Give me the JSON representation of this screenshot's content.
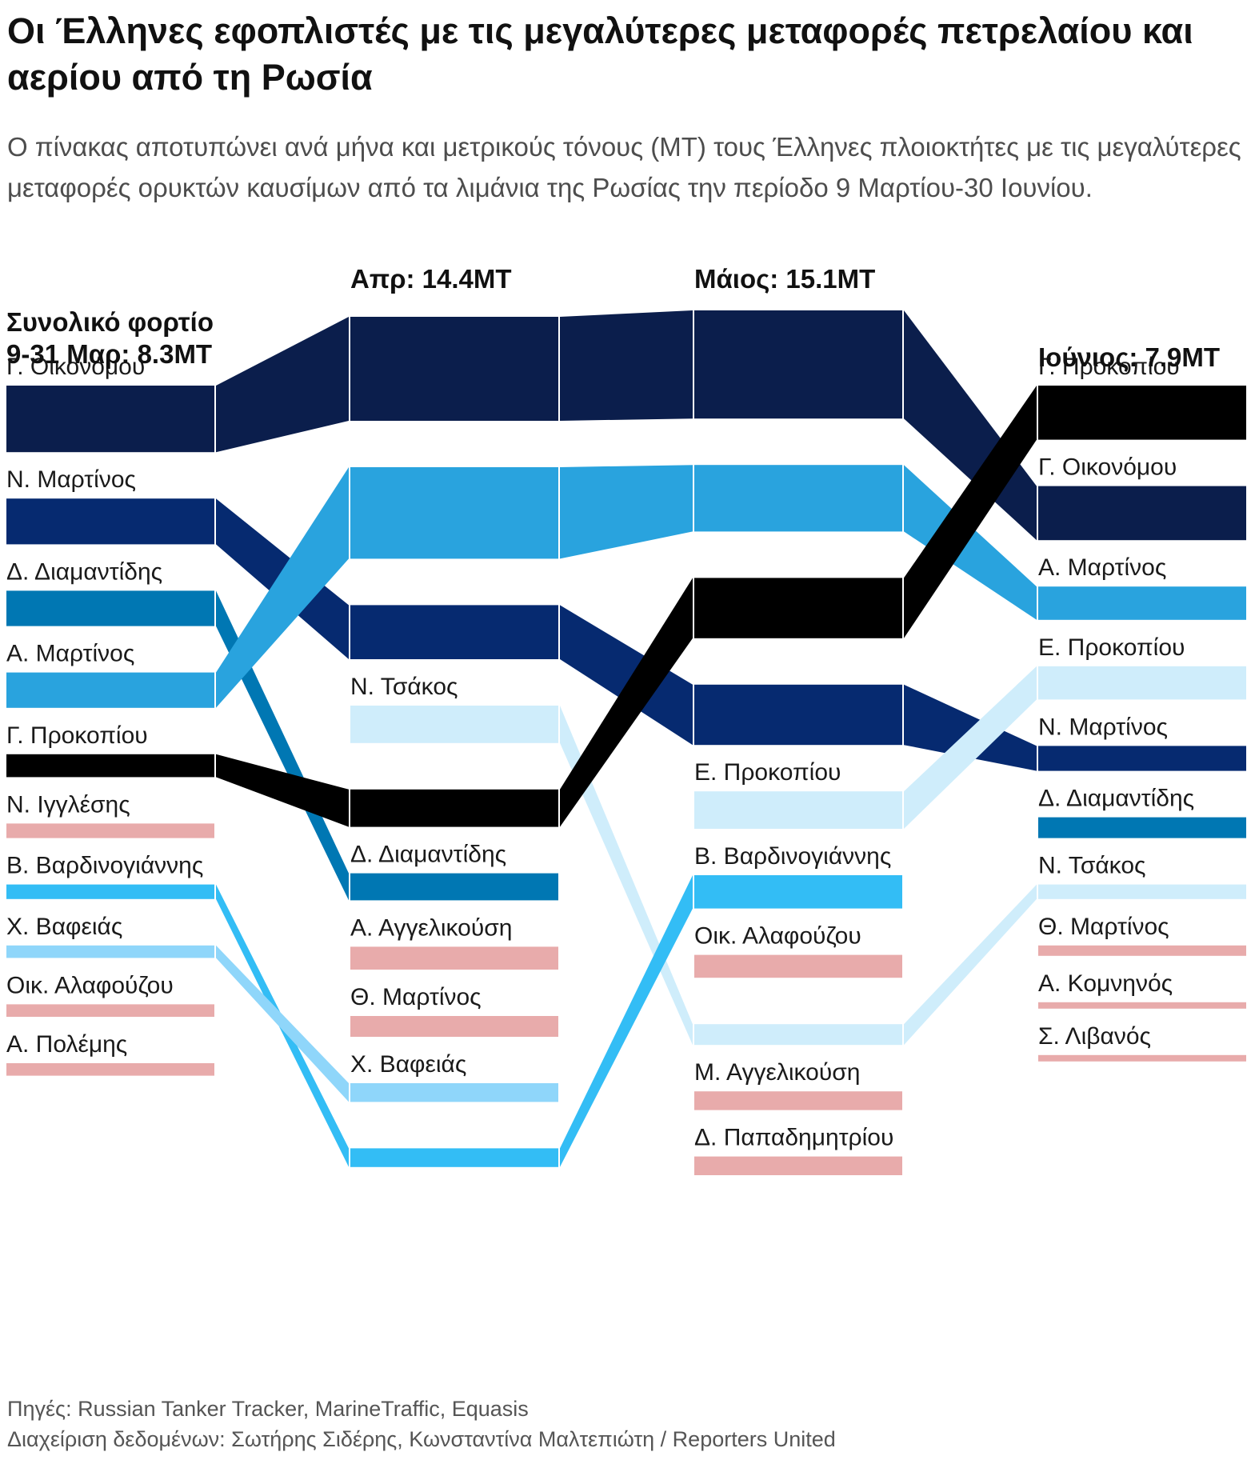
{
  "title": "Οι Έλληνες εφοπλιστές με τις μεγαλύτερες μεταφορές πετρελαίου και αερίου από τη Ρωσία",
  "subtitle": "Ο πίνακας αποτυπώνει ανά μήνα και μετρικούς τόνους (ΜΤ) τους Έλληνες πλοιοκτήτες με τις μεγαλύτερες μεταφορές ορυκτών καυσίμων από τα λιμάνια της Ρωσίας  την περίοδο 9 Μαρτίου-30 Ιουνίου.",
  "footer": {
    "sources": "Πηγές: Russian Tanker Tracker, MarineTraffic, Equasis",
    "credits": "Διαχείριση δεδομένων: Σωτήρης Σιδέρης, Κωνσταντίνα Μαλτεπιώτη / Reporters United"
  },
  "chart_data": {
    "type": "sankey",
    "unit": "MT",
    "periods": [
      {
        "key": "mar",
        "header": [
          "Συνολικό φορτίο",
          "9-31 Μαρ: 8.3MT"
        ],
        "total": 8.3
      },
      {
        "key": "apr",
        "header": [
          "Απρ: 14.4MT"
        ],
        "total": 14.4
      },
      {
        "key": "may",
        "header": [
          "Μάιος: 15.1MT"
        ],
        "total": 15.1
      },
      {
        "key": "jun",
        "header": [
          "Ιούνιος: 7.9MT"
        ],
        "total": 7.9
      }
    ],
    "colors": {
      "Γ. Οικονόμου": "#0b1e4c",
      "Ν. Μαρτίνος": "#062a70",
      "Δ. Διαμαντίδης": "#0077b3",
      "Α. Μαρτίνος": "#29a3de",
      "Γ. Προκοπίου": "#000000",
      "Ν. Τσάκος": "#cfedfb",
      "Ε. Προκοπίου": "#cfedfb",
      "Β. Βαρδινογιάννης": "#33bdf5",
      "Χ. Βαφειάς": "#8fd6fa",
      "other": "#e8abab"
    },
    "owners": {
      "mar": [
        {
          "name": "Γ. Οικονόμου",
          "value": 1.6
        },
        {
          "name": "Ν. Μαρτίνος",
          "value": 1.1
        },
        {
          "name": "Δ. Διαμαντίδης",
          "value": 0.85
        },
        {
          "name": "Α. Μαρτίνος",
          "value": 0.85
        },
        {
          "name": "Γ. Προκοπίου",
          "value": 0.55
        },
        {
          "name": "Ν. Ιγγλέσης",
          "value": 0.35
        },
        {
          "name": "Β. Βαρδινογιάννης",
          "value": 0.35
        },
        {
          "name": "Χ. Βαφειάς",
          "value": 0.3
        },
        {
          "name": "Οικ. Αλαφούζου",
          "value": 0.3
        },
        {
          "name": "Α. Πολέμης",
          "value": 0.3
        }
      ],
      "apr": [
        {
          "name": "Γ. Οικονόμου",
          "value": 2.5
        },
        {
          "name": "Α. Μαρτίνος",
          "value": 2.2
        },
        {
          "name": "Ν. Μαρτίνος",
          "value": 1.3
        },
        {
          "name": "Ν. Τσάκος",
          "value": 0.9
        },
        {
          "name": "Γ. Προκοπίου",
          "value": 0.9
        },
        {
          "name": "Δ. Διαμαντίδης",
          "value": 0.65
        },
        {
          "name": "Α. Αγγελικούση",
          "value": 0.55
        },
        {
          "name": "Θ. Μαρτίνος",
          "value": 0.5
        },
        {
          "name": "Χ. Βαφειάς",
          "value": 0.45
        },
        {
          "name": "Β. Βαρδινογιάννης",
          "value": 0.45
        }
      ],
      "may": [
        {
          "name": "Γ. Οικονόμου",
          "value": 2.6
        },
        {
          "name": "Α. Μαρτίνος",
          "value": 1.6
        },
        {
          "name": "Γ. Προκοπίου",
          "value": 1.45
        },
        {
          "name": "Ν. Μαρτίνος",
          "value": 1.45
        },
        {
          "name": "Ε. Προκοπίου",
          "value": 0.9
        },
        {
          "name": "Β. Βαρδινογιάννης",
          "value": 0.8
        },
        {
          "name": "Οικ. Αλαφούζου",
          "value": 0.55
        },
        {
          "name": "Ν. Τσάκος",
          "value": 0.5
        },
        {
          "name": "Μ. Αγγελικούση",
          "value": 0.45
        },
        {
          "name": "Δ. Παπαδημητρίου",
          "value": 0.45
        }
      ],
      "jun": [
        {
          "name": "Γ. Προκοπίου",
          "value": 1.3
        },
        {
          "name": "Γ. Οικονόμου",
          "value": 1.3
        },
        {
          "name": "Α. Μαρτίνος",
          "value": 0.8
        },
        {
          "name": "Ε. Προκοπίου",
          "value": 0.8
        },
        {
          "name": "Ν. Μαρτίνος",
          "value": 0.6
        },
        {
          "name": "Δ. Διαμαντίδης",
          "value": 0.5
        },
        {
          "name": "Ν. Τσάκος",
          "value": 0.35
        },
        {
          "name": "Θ. Μαρτίνος",
          "value": 0.25
        },
        {
          "name": "Α. Κομνηνός",
          "value": 0.15
        },
        {
          "name": "Σ. Λιβανός",
          "value": 0.15
        }
      ]
    },
    "hidden_labels": {
      "apr": [
        "Γ. Οικονόμου",
        "Α. Μαρτίνος",
        "Ν. Μαρτίνος",
        "Γ. Προκοπίου",
        "Β. Βαρδινογιάννης"
      ],
      "may": [
        "Γ. Οικονόμου",
        "Α. Μαρτίνος",
        "Γ. Προκοπίου",
        "Ν. Μαρτίνος",
        "Ν. Τσάκος"
      ]
    }
  }
}
